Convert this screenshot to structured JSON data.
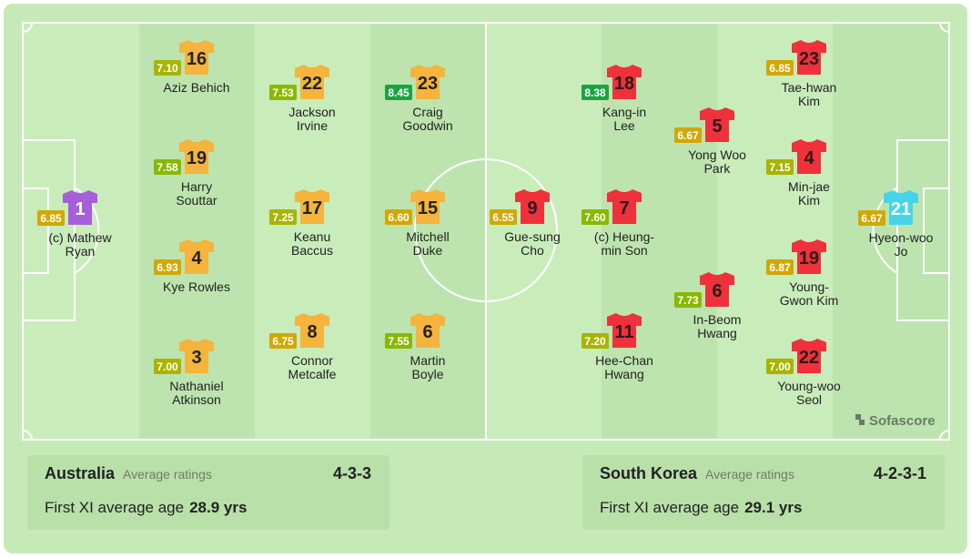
{
  "brand": "Sofascore",
  "teams": [
    {
      "name": "Australia",
      "ratings_label": "Average ratings",
      "formation": "4-3-3",
      "age_label": "First XI average age",
      "age_value": "28.9 yrs",
      "jersey_color": "#f4b43d",
      "number_color": "#222222",
      "gk_color": "#a65fdb",
      "gk_number_color": "#ffffff",
      "players": [
        {
          "number": 1,
          "rating": "6.85",
          "name_lines": [
            "(c) Mathew",
            "Ryan"
          ]
        },
        {
          "number": 16,
          "rating": "7.10",
          "name_lines": [
            "Aziz Behich"
          ]
        },
        {
          "number": 19,
          "rating": "7.58",
          "name_lines": [
            "Harry",
            "Souttar"
          ]
        },
        {
          "number": 4,
          "rating": "6.93",
          "name_lines": [
            "Kye Rowles"
          ]
        },
        {
          "number": 3,
          "rating": "7.00",
          "name_lines": [
            "Nathaniel",
            "Atkinson"
          ]
        },
        {
          "number": 22,
          "rating": "7.53",
          "name_lines": [
            "Jackson",
            "Irvine"
          ]
        },
        {
          "number": 17,
          "rating": "7.25",
          "name_lines": [
            "Keanu",
            "Baccus"
          ]
        },
        {
          "number": 8,
          "rating": "6.75",
          "name_lines": [
            "Connor",
            "Metcalfe"
          ]
        },
        {
          "number": 23,
          "rating": "8.45",
          "name_lines": [
            "Craig",
            "Goodwin"
          ]
        },
        {
          "number": 15,
          "rating": "6.60",
          "name_lines": [
            "Mitchell",
            "Duke"
          ]
        },
        {
          "number": 6,
          "rating": "7.55",
          "name_lines": [
            "Martin",
            "Boyle"
          ]
        }
      ]
    },
    {
      "name": "South Korea",
      "ratings_label": "Average ratings",
      "formation": "4-2-3-1",
      "age_label": "First XI average age",
      "age_value": "29.1 yrs",
      "jersey_color": "#ef313b",
      "number_color": "#2b1b1b",
      "gk_color": "#46d5e8",
      "gk_number_color": "#ffffff",
      "players": [
        {
          "number": 21,
          "rating": "6.67",
          "name_lines": [
            "Hyeon-woo",
            "Jo"
          ]
        },
        {
          "number": 23,
          "rating": "6.85",
          "name_lines": [
            "Tae-hwan",
            "Kim"
          ]
        },
        {
          "number": 4,
          "rating": "7.15",
          "name_lines": [
            "Min-jae",
            "Kim"
          ]
        },
        {
          "number": 19,
          "rating": "6.87",
          "name_lines": [
            "Young-",
            "Gwon Kim"
          ]
        },
        {
          "number": 22,
          "rating": "7.00",
          "name_lines": [
            "Young-woo",
            "Seol"
          ]
        },
        {
          "number": 5,
          "rating": "6.67",
          "name_lines": [
            "Yong Woo",
            "Park"
          ]
        },
        {
          "number": 6,
          "rating": "7.73",
          "name_lines": [
            "In-Beom",
            "Hwang"
          ]
        },
        {
          "number": 18,
          "rating": "8.38",
          "name_lines": [
            "Kang-in",
            "Lee"
          ]
        },
        {
          "number": 7,
          "rating": "7.60",
          "name_lines": [
            "(c) Heung-",
            "min Son"
          ]
        },
        {
          "number": 11,
          "rating": "7.20",
          "name_lines": [
            "Hee-Chan",
            "Hwang"
          ]
        },
        {
          "number": 9,
          "rating": "6.55",
          "name_lines": [
            "Gue-sung",
            "Cho"
          ]
        }
      ]
    }
  ]
}
